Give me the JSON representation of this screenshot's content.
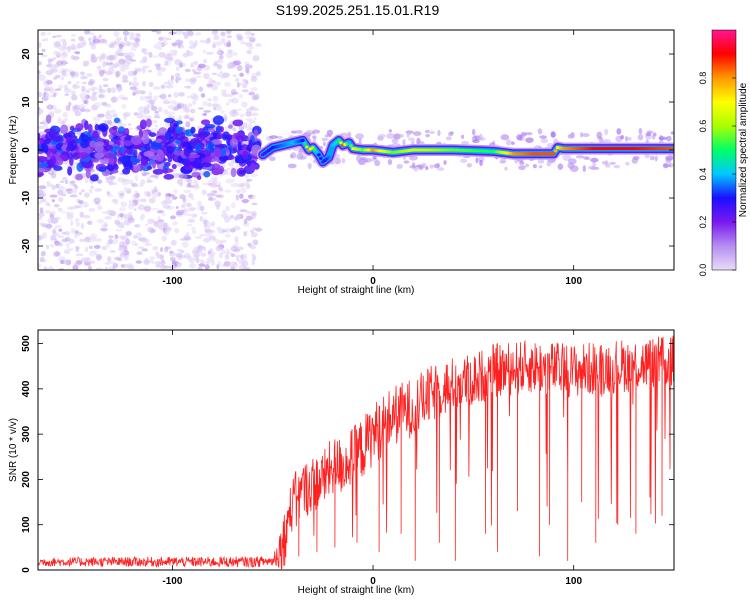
{
  "title": "S199.2025.251.15.01.R19",
  "chart_data": [
    {
      "type": "heatmap",
      "xlabel": "Height of straight line (km)",
      "ylabel": "Frequency (Hz)",
      "xlim": [
        -167,
        150
      ],
      "ylim": [
        -25,
        25
      ],
      "xticks": [
        -100,
        0,
        100
      ],
      "yticks": [
        -20,
        -10,
        0,
        10,
        20
      ],
      "grid": false,
      "colorbar": {
        "label": "Normalized spectral amplitude",
        "range": [
          0,
          1
        ],
        "ticks": [
          0.0,
          0.2,
          0.4,
          0.6,
          0.8
        ],
        "colormap": [
          "#e8dcf8",
          "#b58ef0",
          "#7a18f0",
          "#1a10ff",
          "#00c8ff",
          "#00ff66",
          "#aaff00",
          "#ffff00",
          "#ff9900",
          "#ff0000",
          "#ff1493"
        ]
      },
      "ridge": {
        "x": [
          -55,
          -50,
          -45,
          -40,
          -35,
          -32,
          -30,
          -27,
          -25,
          -22,
          -20,
          -17,
          -15,
          -12,
          -10,
          -5,
          0,
          10,
          20,
          40,
          60,
          70,
          80,
          90,
          92,
          95,
          110,
          130,
          150
        ],
        "y": [
          -1.0,
          0.5,
          1.0,
          1.5,
          2.0,
          0.0,
          0.5,
          -1.0,
          -2.5,
          -1.5,
          1.0,
          2.0,
          1.0,
          1.5,
          0.3,
          0.0,
          0.0,
          -0.5,
          0.0,
          0.0,
          -0.3,
          -0.8,
          -0.8,
          -0.8,
          0.5,
          0.3,
          0.3,
          0.3,
          0.3
        ],
        "amplitude": [
          0.25,
          0.3,
          0.35,
          0.4,
          0.3,
          0.8,
          0.6,
          0.3,
          0.25,
          0.35,
          0.4,
          0.5,
          0.85,
          0.4,
          0.7,
          0.55,
          0.8,
          0.55,
          0.65,
          0.55,
          0.5,
          0.8,
          0.85,
          0.85,
          0.7,
          0.8,
          0.9,
          0.9,
          0.85
        ]
      },
      "noise_region": {
        "x_range": [
          -167,
          -57
        ],
        "amplitude_range": [
          0.0,
          0.35
        ]
      }
    },
    {
      "type": "line",
      "xlabel": "Height of straight line (km)",
      "ylabel": "SNR (10 * v/v)",
      "xlim": [
        -167,
        150
      ],
      "ylim": [
        0,
        530
      ],
      "xticks": [
        -100,
        0,
        100
      ],
      "yticks": [
        0,
        100,
        200,
        300,
        400,
        500
      ],
      "grid": false,
      "series": [
        {
          "color": "#ff2020",
          "envelope": {
            "x": [
              -167,
              -60,
              -50,
              -45,
              -40,
              -35,
              -30,
              -25,
              -20,
              -15,
              -10,
              -5,
              0,
              10,
              20,
              30,
              40,
              50,
              60,
              80,
              100,
              120,
              150
            ],
            "y": [
              18,
              18,
              20,
              60,
              150,
              175,
              190,
              200,
              230,
              230,
              250,
              270,
              300,
              340,
              360,
              390,
              410,
              420,
              440,
              450,
              440,
              450,
              460
            ]
          },
          "noise_amplitude": {
            "x": [
              -167,
              -50,
              -45,
              0,
              50,
              150
            ],
            "y": [
              10,
              12,
              60,
              70,
              60,
              60
            ]
          },
          "dropouts": [
            {
              "x": -44,
              "y": 10
            },
            {
              "x": -37,
              "y": 30
            },
            {
              "x": -28,
              "y": 40
            },
            {
              "x": -19,
              "y": 50
            },
            {
              "x": -8,
              "y": 60
            },
            {
              "x": 3,
              "y": 40
            },
            {
              "x": 14,
              "y": 80
            },
            {
              "x": 21,
              "y": 20
            },
            {
              "x": 33,
              "y": 60
            },
            {
              "x": 41,
              "y": 20
            },
            {
              "x": 56,
              "y": 80
            },
            {
              "x": 62,
              "y": 40
            },
            {
              "x": 72,
              "y": 130
            },
            {
              "x": 83,
              "y": 30
            },
            {
              "x": 88,
              "y": 100
            },
            {
              "x": 97,
              "y": 20
            },
            {
              "x": 104,
              "y": 150
            },
            {
              "x": 111,
              "y": 60
            },
            {
              "x": 122,
              "y": 100
            },
            {
              "x": 131,
              "y": 80
            },
            {
              "x": 138,
              "y": 160
            },
            {
              "x": 144,
              "y": 120
            }
          ]
        }
      ]
    }
  ]
}
